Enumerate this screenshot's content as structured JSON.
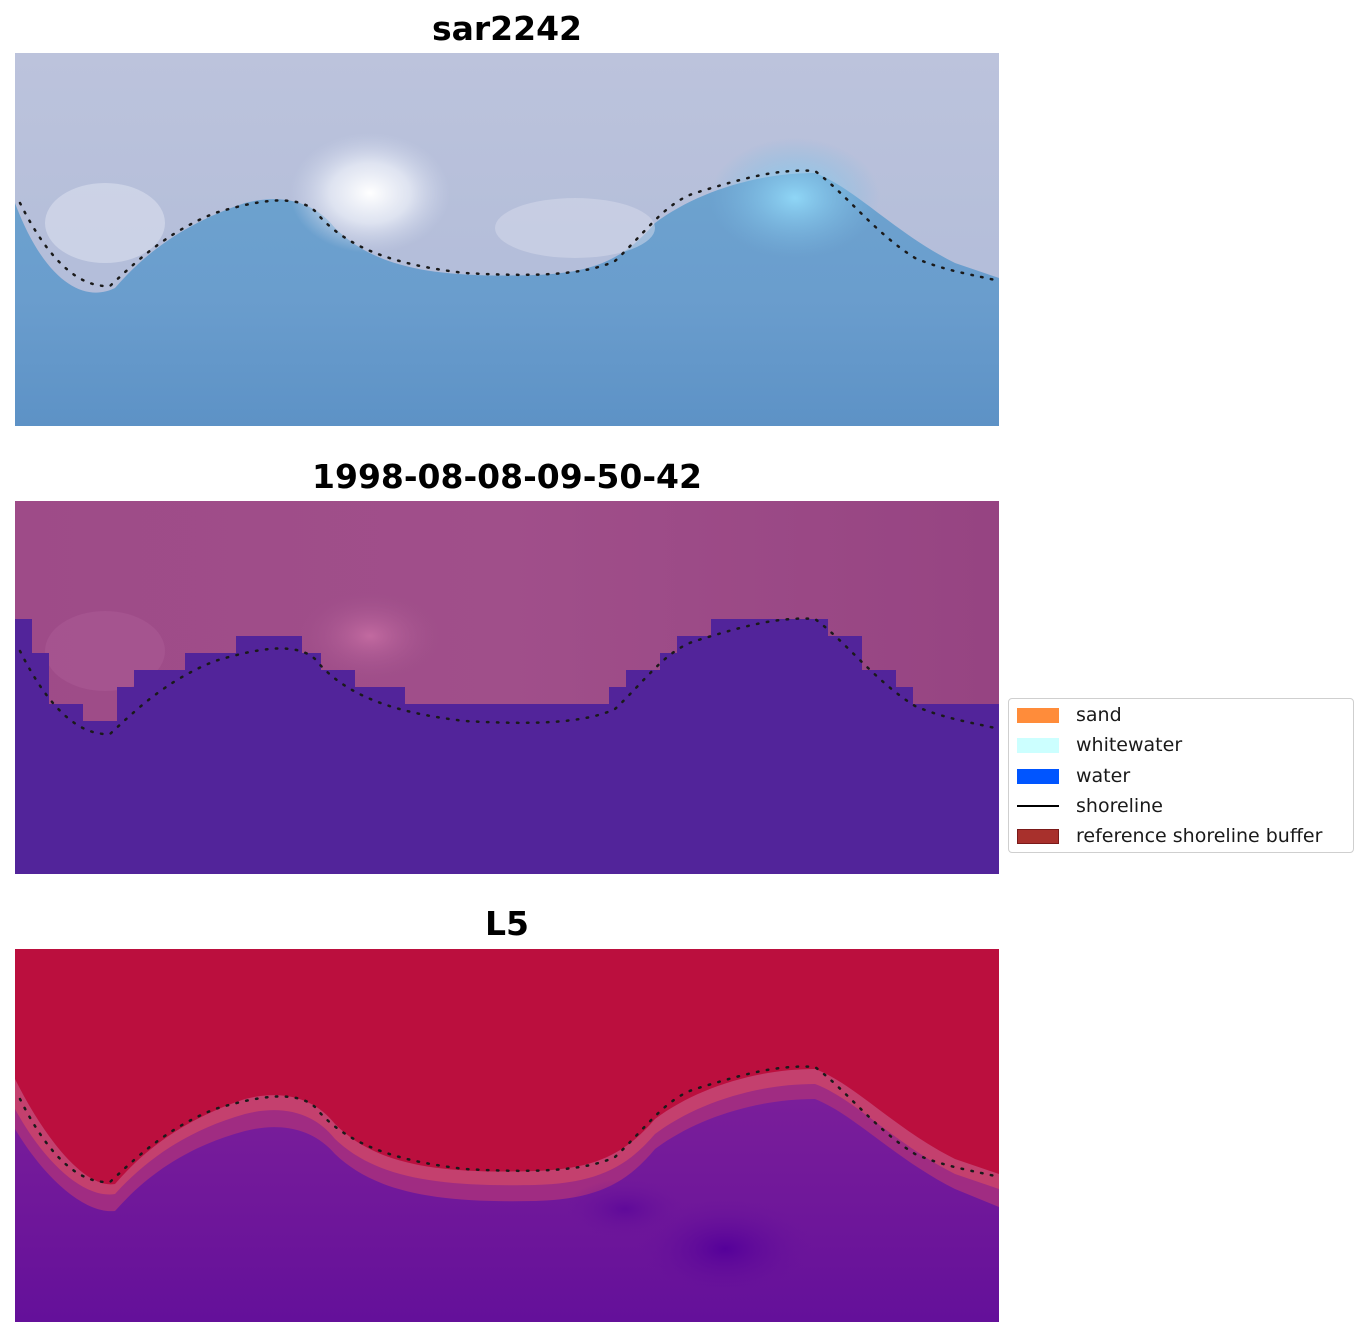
{
  "panels": [
    {
      "title": "sar2242"
    },
    {
      "title": "1998-08-08-09-50-42"
    },
    {
      "title": "L5"
    }
  ],
  "legend": {
    "items": [
      {
        "label": "sand",
        "kind": "patch",
        "color": "#ff8c3a",
        "edge": "none"
      },
      {
        "label": "whitewater",
        "kind": "patch",
        "color": "#ccffff",
        "edge": "none"
      },
      {
        "label": "water",
        "kind": "patch",
        "color": "#0055ff",
        "edge": "none"
      },
      {
        "label": "shoreline",
        "kind": "line",
        "color": "#000000",
        "edge": "none"
      },
      {
        "label": "reference shoreline buffer",
        "kind": "patch",
        "color": "#a8302c",
        "edge": "#7a1a1a"
      }
    ]
  },
  "colors": {
    "sar_sky": "#b4bcd9",
    "sar_water": "#5e92c6",
    "class_land": "#9c4a86",
    "class_water": "#52249a",
    "prob_land": "#bf1040",
    "prob_water": "#6c1696"
  }
}
